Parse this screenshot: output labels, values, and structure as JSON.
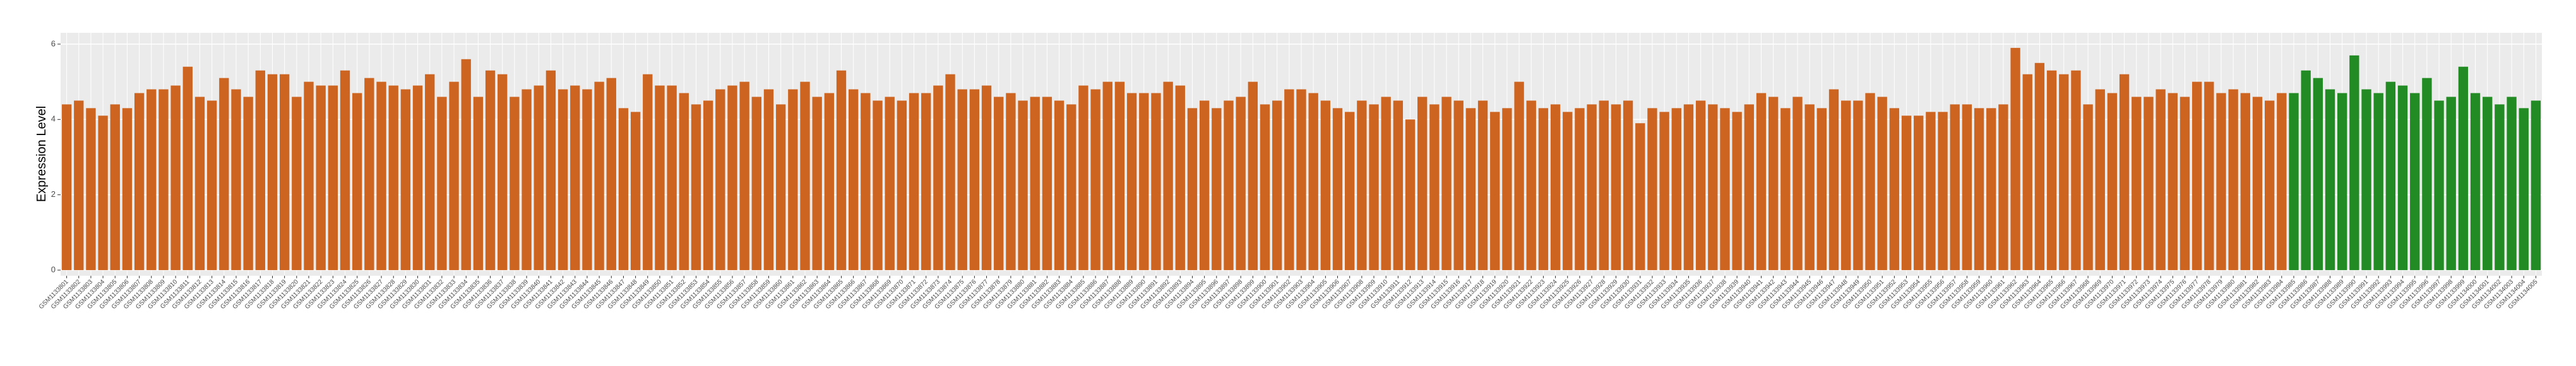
{
  "chart_data": {
    "type": "bar",
    "y_label": "Expression Level",
    "ylim": [
      -0.15,
      6.3
    ],
    "yticks": [
      0,
      2,
      4,
      6
    ],
    "grid": true,
    "categories": [
      "GSM1133801",
      "GSM1133802",
      "GSM1133803",
      "GSM1133804",
      "GSM1133805",
      "GSM1133806",
      "GSM1133807",
      "GSM1133808",
      "GSM1133809",
      "GSM1133810",
      "GSM1133811",
      "GSM1133812",
      "GSM1133813",
      "GSM1133814",
      "GSM1133815",
      "GSM1133816",
      "GSM1133817",
      "GSM1133818",
      "GSM1133819",
      "GSM1133820",
      "GSM1133821",
      "GSM1133822",
      "GSM1133823",
      "GSM1133824",
      "GSM1133825",
      "GSM1133826",
      "GSM1133827",
      "GSM1133828",
      "GSM1133829",
      "GSM1133830",
      "GSM1133831",
      "GSM1133832",
      "GSM1133833",
      "GSM1133834",
      "GSM1133835",
      "GSM1133836",
      "GSM1133837",
      "GSM1133838",
      "GSM1133839",
      "GSM1133840",
      "GSM1133841",
      "GSM1133842",
      "GSM1133843",
      "GSM1133844",
      "GSM1133845",
      "GSM1133846",
      "GSM1133847",
      "GSM1133848",
      "GSM1133849",
      "GSM1133850",
      "GSM1133851",
      "GSM1133852",
      "GSM1133853",
      "GSM1133854",
      "GSM1133855",
      "GSM1133856",
      "GSM1133857",
      "GSM1133858",
      "GSM1133859",
      "GSM1133860",
      "GSM1133861",
      "GSM1133862",
      "GSM1133863",
      "GSM1133864",
      "GSM1133865",
      "GSM1133866",
      "GSM1133867",
      "GSM1133868",
      "GSM1133869",
      "GSM1133870",
      "GSM1133871",
      "GSM1133872",
      "GSM1133873",
      "GSM1133874",
      "GSM1133875",
      "GSM1133876",
      "GSM1133877",
      "GSM1133878",
      "GSM1133879",
      "GSM1133880",
      "GSM1133881",
      "GSM1133882",
      "GSM1133883",
      "GSM1133884",
      "GSM1133885",
      "GSM1133886",
      "GSM1133887",
      "GSM1133888",
      "GSM1133889",
      "GSM1133890",
      "GSM1133891",
      "GSM1133892",
      "GSM1133893",
      "GSM1133894",
      "GSM1133895",
      "GSM1133896",
      "GSM1133897",
      "GSM1133898",
      "GSM1133899",
      "GSM1133900",
      "GSM1133901",
      "GSM1133902",
      "GSM1133903",
      "GSM1133904",
      "GSM1133905",
      "GSM1133906",
      "GSM1133907",
      "GSM1133908",
      "GSM1133909",
      "GSM1133910",
      "GSM1133911",
      "GSM1133912",
      "GSM1133913",
      "GSM1133914",
      "GSM1133915",
      "GSM1133916",
      "GSM1133917",
      "GSM1133918",
      "GSM1133919",
      "GSM1133920",
      "GSM1133921",
      "GSM1133922",
      "GSM1133923",
      "GSM1133924",
      "GSM1133925",
      "GSM1133926",
      "GSM1133927",
      "GSM1133928",
      "GSM1133929",
      "GSM1133930",
      "GSM1133931",
      "GSM1133932",
      "GSM1133933",
      "GSM1133934",
      "GSM1133935",
      "GSM1133936",
      "GSM1133937",
      "GSM1133938",
      "GSM1133939",
      "GSM1133940",
      "GSM1133941",
      "GSM1133942",
      "GSM1133943",
      "GSM1133944",
      "GSM1133945",
      "GSM1133946",
      "GSM1133947",
      "GSM1133948",
      "GSM1133949",
      "GSM1133950",
      "GSM1133951",
      "GSM1133952",
      "GSM1133953",
      "GSM1133954",
      "GSM1133955",
      "GSM1133956",
      "GSM1133957",
      "GSM1133958",
      "GSM1133959",
      "GSM1133960",
      "GSM1133961",
      "GSM1133962",
      "GSM1133963",
      "GSM1133964",
      "GSM1133965",
      "GSM1133966",
      "GSM1133967",
      "GSM1133968",
      "GSM1133969",
      "GSM1133970",
      "GSM1133971",
      "GSM1133972",
      "GSM1133973",
      "GSM1133974",
      "GSM1133975",
      "GSM1133976",
      "GSM1133977",
      "GSM1133978",
      "GSM1133979",
      "GSM1133980",
      "GSM1133981",
      "GSM1133982",
      "GSM1133983",
      "GSM1133984",
      "GSM1133985",
      "GSM1133986",
      "GSM1133987",
      "GSM1133988",
      "GSM1133989",
      "GSM1133990",
      "GSM1133991",
      "GSM1133992",
      "GSM1133993",
      "GSM1133994",
      "GSM1133995",
      "GSM1133996",
      "GSM1133997",
      "GSM1133998",
      "GSM1133999",
      "GSM1134000",
      "GSM1134001",
      "GSM1134002",
      "GSM1134003",
      "GSM1134004",
      "GSM1134005"
    ],
    "series": [
      {
        "color": "#cd6420",
        "values": [
          4.4,
          4.5,
          4.3,
          4.1,
          4.4,
          4.3,
          4.7,
          4.8,
          4.8,
          4.9,
          5.4,
          4.6,
          4.5,
          5.1,
          4.8,
          4.6,
          5.3,
          5.2,
          5.2,
          4.6,
          5.0,
          4.9,
          4.9,
          5.3,
          4.7,
          5.1,
          5.0,
          4.9,
          4.8,
          4.9,
          5.2,
          4.6,
          5.0,
          5.6,
          4.6,
          5.3,
          5.2,
          4.6,
          4.8,
          4.9,
          5.3,
          4.8,
          4.9,
          4.8,
          5.0,
          5.1,
          4.3,
          4.2,
          5.2,
          4.9,
          4.9,
          4.7,
          4.4,
          4.5,
          4.8,
          4.9,
          5.0,
          4.6,
          4.8,
          4.4,
          4.8,
          5.0,
          4.6,
          4.7,
          5.3,
          4.8,
          4.7,
          4.5,
          4.6,
          4.5,
          4.7,
          4.7,
          4.9,
          5.2,
          4.8,
          4.8,
          4.9,
          4.6,
          4.7,
          4.5,
          4.6,
          4.6,
          4.5,
          4.4,
          4.9,
          4.8,
          5.0,
          5.0,
          4.7,
          4.7,
          4.7,
          5.0,
          4.9,
          4.3,
          4.5,
          4.3,
          4.5,
          4.6,
          5.0,
          4.4,
          4.5,
          4.8,
          4.8,
          4.7,
          4.5,
          4.3,
          4.2,
          4.5,
          4.4,
          4.6,
          4.5,
          4.0,
          4.6,
          4.4,
          4.6,
          4.5,
          4.3,
          4.5,
          4.2,
          4.3,
          5.0,
          4.5,
          4.3,
          4.4,
          4.2,
          4.3,
          4.4,
          4.5,
          4.4,
          4.5,
          3.9,
          4.3,
          4.2,
          4.3,
          4.4,
          4.5,
          4.4,
          4.3,
          4.2,
          4.4,
          4.7,
          4.6,
          4.3,
          4.6,
          4.4,
          4.3,
          4.8,
          4.5,
          4.5,
          4.7,
          4.6,
          4.3,
          4.1,
          4.1,
          4.2,
          4.2,
          4.4,
          4.4,
          4.3,
          4.3,
          4.4,
          5.9,
          5.2,
          5.5,
          5.3,
          5.2,
          5.3,
          4.4,
          4.8,
          4.7,
          5.2,
          4.6,
          4.6,
          4.8,
          4.7,
          4.6,
          5.0,
          5.0,
          4.7,
          4.8,
          4.7,
          4.6,
          4.5,
          4.7,
          null,
          null,
          null,
          null,
          null,
          null,
          null,
          null,
          null,
          null,
          null,
          null,
          null,
          null,
          null,
          null,
          null,
          null,
          null,
          null,
          null
        ]
      },
      {
        "color": "#238b23",
        "values": [
          null,
          null,
          null,
          null,
          null,
          null,
          null,
          null,
          null,
          null,
          null,
          null,
          null,
          null,
          null,
          null,
          null,
          null,
          null,
          null,
          null,
          null,
          null,
          null,
          null,
          null,
          null,
          null,
          null,
          null,
          null,
          null,
          null,
          null,
          null,
          null,
          null,
          null,
          null,
          null,
          null,
          null,
          null,
          null,
          null,
          null,
          null,
          null,
          null,
          null,
          null,
          null,
          null,
          null,
          null,
          null,
          null,
          null,
          null,
          null,
          null,
          null,
          null,
          null,
          null,
          null,
          null,
          null,
          null,
          null,
          null,
          null,
          null,
          null,
          null,
          null,
          null,
          null,
          null,
          null,
          null,
          null,
          null,
          null,
          null,
          null,
          null,
          null,
          null,
          null,
          null,
          null,
          null,
          null,
          null,
          null,
          null,
          null,
          null,
          null,
          null,
          null,
          null,
          null,
          null,
          null,
          null,
          null,
          null,
          null,
          null,
          null,
          null,
          null,
          null,
          null,
          null,
          null,
          null,
          null,
          null,
          null,
          null,
          null,
          null,
          null,
          null,
          null,
          null,
          null,
          null,
          null,
          null,
          null,
          null,
          null,
          null,
          null,
          null,
          null,
          null,
          null,
          null,
          null,
          null,
          null,
          null,
          null,
          null,
          null,
          null,
          null,
          null,
          null,
          null,
          null,
          null,
          null,
          null,
          null,
          null,
          null,
          null,
          null,
          null,
          null,
          null,
          null,
          null,
          null,
          null,
          null,
          null,
          null,
          null,
          null,
          null,
          null,
          null,
          null,
          null,
          null,
          null,
          null,
          4.7,
          5.3,
          5.1,
          4.8,
          4.7,
          5.7,
          4.8,
          4.7,
          5.0,
          4.9,
          4.7,
          5.1,
          4.5,
          4.6,
          5.4,
          4.7,
          4.6,
          4.4,
          4.6,
          4.3,
          4.5
        ]
      }
    ]
  }
}
